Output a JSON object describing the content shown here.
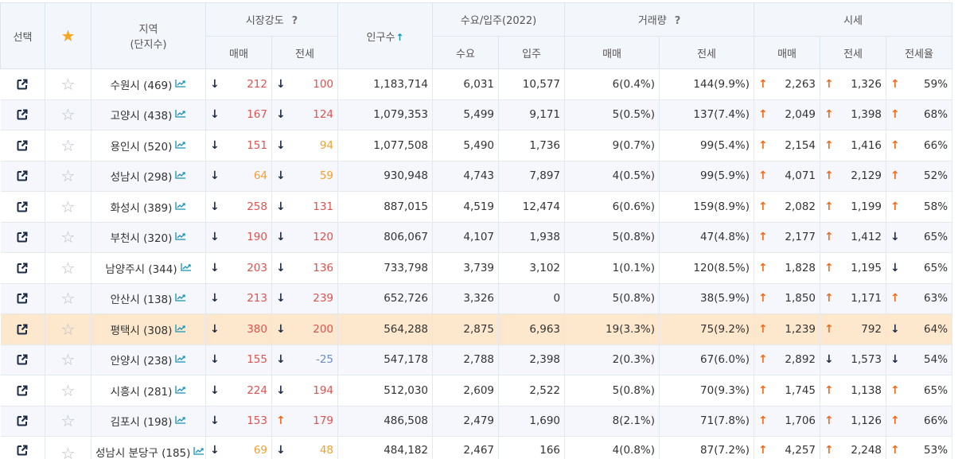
{
  "header": {
    "select": "선택",
    "region_line1": "지역",
    "region_line2": "(단지수)",
    "market_strength": "시장강도",
    "population": "인구수",
    "demand_supply": "수요/입주(2022)",
    "volume": "거래량",
    "price": "시세",
    "qmark": "?",
    "sort_arrow": "↑",
    "sub": {
      "ms_sale": "매매",
      "ms_jeonse": "전세",
      "demand": "수요",
      "supply": "입주",
      "vol_sale": "매매",
      "vol_jeonse": "전세",
      "price_sale": "매매",
      "price_jeonse": "전세",
      "price_ratio": "전세율"
    }
  },
  "rows": [
    {
      "region": "수원시 (469)",
      "ms_sale": {
        "arrow": "↓",
        "value": "212",
        "color": "red"
      },
      "ms_jeonse": {
        "arrow": "↓",
        "value": "100",
        "color": "red"
      },
      "population": "1,183,714",
      "demand": "6,031",
      "supply": "10,577",
      "vol_sale": "6(0.4%)",
      "vol_jeonse": "144(9.9%)",
      "price_sale": {
        "arrow": "↑",
        "value": "2,263"
      },
      "price_jeonse": {
        "arrow": "↑",
        "value": "1,326"
      },
      "ratio": {
        "arrow": "↑",
        "value": "59%"
      }
    },
    {
      "region": "고양시 (438)",
      "ms_sale": {
        "arrow": "↓",
        "value": "167",
        "color": "red"
      },
      "ms_jeonse": {
        "arrow": "↓",
        "value": "124",
        "color": "red"
      },
      "population": "1,079,353",
      "demand": "5,499",
      "supply": "9,171",
      "vol_sale": "5(0.5%)",
      "vol_jeonse": "137(7.4%)",
      "price_sale": {
        "arrow": "↑",
        "value": "2,049"
      },
      "price_jeonse": {
        "arrow": "↑",
        "value": "1,398"
      },
      "ratio": {
        "arrow": "↑",
        "value": "68%"
      }
    },
    {
      "region": "용인시 (520)",
      "ms_sale": {
        "arrow": "↓",
        "value": "151",
        "color": "red"
      },
      "ms_jeonse": {
        "arrow": "↓",
        "value": "94",
        "color": "org"
      },
      "population": "1,077,508",
      "demand": "5,490",
      "supply": "1,736",
      "vol_sale": "9(0.7%)",
      "vol_jeonse": "99(5.4%)",
      "price_sale": {
        "arrow": "↑",
        "value": "2,154"
      },
      "price_jeonse": {
        "arrow": "↑",
        "value": "1,416"
      },
      "ratio": {
        "arrow": "↑",
        "value": "66%"
      }
    },
    {
      "region": "성남시 (298)",
      "ms_sale": {
        "arrow": "↓",
        "value": "64",
        "color": "org"
      },
      "ms_jeonse": {
        "arrow": "↓",
        "value": "59",
        "color": "org"
      },
      "population": "930,948",
      "demand": "4,743",
      "supply": "7,897",
      "vol_sale": "4(0.5%)",
      "vol_jeonse": "99(5.9%)",
      "price_sale": {
        "arrow": "↑",
        "value": "4,071"
      },
      "price_jeonse": {
        "arrow": "↑",
        "value": "2,129"
      },
      "ratio": {
        "arrow": "↑",
        "value": "52%"
      }
    },
    {
      "region": "화성시 (389)",
      "ms_sale": {
        "arrow": "↓",
        "value": "258",
        "color": "red"
      },
      "ms_jeonse": {
        "arrow": "↓",
        "value": "131",
        "color": "red"
      },
      "population": "887,015",
      "demand": "4,519",
      "supply": "12,474",
      "vol_sale": "6(0.6%)",
      "vol_jeonse": "159(8.9%)",
      "price_sale": {
        "arrow": "↑",
        "value": "2,082"
      },
      "price_jeonse": {
        "arrow": "↑",
        "value": "1,199"
      },
      "ratio": {
        "arrow": "↑",
        "value": "58%"
      }
    },
    {
      "region": "부천시 (320)",
      "ms_sale": {
        "arrow": "↓",
        "value": "190",
        "color": "red"
      },
      "ms_jeonse": {
        "arrow": "↓",
        "value": "120",
        "color": "red"
      },
      "population": "806,067",
      "demand": "4,107",
      "supply": "1,938",
      "vol_sale": "5(0.8%)",
      "vol_jeonse": "47(4.8%)",
      "price_sale": {
        "arrow": "↑",
        "value": "2,177"
      },
      "price_jeonse": {
        "arrow": "↑",
        "value": "1,412"
      },
      "ratio": {
        "arrow": "↓",
        "value": "65%"
      }
    },
    {
      "region": "남양주시 (344)",
      "ms_sale": {
        "arrow": "↓",
        "value": "203",
        "color": "red"
      },
      "ms_jeonse": {
        "arrow": "↓",
        "value": "136",
        "color": "red"
      },
      "population": "733,798",
      "demand": "3,739",
      "supply": "3,102",
      "vol_sale": "1(0.1%)",
      "vol_jeonse": "120(8.5%)",
      "price_sale": {
        "arrow": "↑",
        "value": "1,828"
      },
      "price_jeonse": {
        "arrow": "↑",
        "value": "1,195"
      },
      "ratio": {
        "arrow": "↓",
        "value": "65%"
      }
    },
    {
      "region": "안산시 (138)",
      "ms_sale": {
        "arrow": "↓",
        "value": "213",
        "color": "red"
      },
      "ms_jeonse": {
        "arrow": "↓",
        "value": "239",
        "color": "red"
      },
      "population": "652,726",
      "demand": "3,326",
      "supply": "0",
      "vol_sale": "5(0.8%)",
      "vol_jeonse": "38(5.9%)",
      "price_sale": {
        "arrow": "↑",
        "value": "1,850"
      },
      "price_jeonse": {
        "arrow": "↑",
        "value": "1,171"
      },
      "ratio": {
        "arrow": "↑",
        "value": "63%"
      }
    },
    {
      "region": "평택시 (308)",
      "highlight": true,
      "ms_sale": {
        "arrow": "↓",
        "value": "380",
        "color": "red"
      },
      "ms_jeonse": {
        "arrow": "↓",
        "value": "200",
        "color": "red"
      },
      "population": "564,288",
      "demand": "2,875",
      "supply": "6,963",
      "vol_sale": "19(3.3%)",
      "vol_jeonse": "75(9.2%)",
      "price_sale": {
        "arrow": "↑",
        "value": "1,239"
      },
      "price_jeonse": {
        "arrow": "↑",
        "value": "792"
      },
      "ratio": {
        "arrow": "↓",
        "value": "64%"
      }
    },
    {
      "region": "안양시 (238)",
      "ms_sale": {
        "arrow": "↓",
        "value": "155",
        "color": "red"
      },
      "ms_jeonse": {
        "arrow": "↓",
        "value": "-25",
        "color": "blu"
      },
      "population": "547,178",
      "demand": "2,788",
      "supply": "2,398",
      "vol_sale": "2(0.3%)",
      "vol_jeonse": "67(6.0%)",
      "price_sale": {
        "arrow": "↑",
        "value": "2,892"
      },
      "price_jeonse": {
        "arrow": "↓",
        "value": "1,573"
      },
      "ratio": {
        "arrow": "↓",
        "value": "54%"
      }
    },
    {
      "region": "시흥시 (281)",
      "ms_sale": {
        "arrow": "↓",
        "value": "224",
        "color": "red"
      },
      "ms_jeonse": {
        "arrow": "↓",
        "value": "194",
        "color": "red"
      },
      "population": "512,030",
      "demand": "2,609",
      "supply": "2,522",
      "vol_sale": "5(0.8%)",
      "vol_jeonse": "70(9.3%)",
      "price_sale": {
        "arrow": "↑",
        "value": "1,745"
      },
      "price_jeonse": {
        "arrow": "↑",
        "value": "1,138"
      },
      "ratio": {
        "arrow": "↑",
        "value": "65%"
      }
    },
    {
      "region": "김포시 (198)",
      "ms_sale": {
        "arrow": "↓",
        "value": "153",
        "color": "red"
      },
      "ms_jeonse": {
        "arrow": "↑",
        "value": "179",
        "color": "red"
      },
      "population": "486,508",
      "demand": "2,479",
      "supply": "1,690",
      "vol_sale": "8(2.1%)",
      "vol_jeonse": "71(7.8%)",
      "price_sale": {
        "arrow": "↑",
        "value": "1,706"
      },
      "price_jeonse": {
        "arrow": "↑",
        "value": "1,126"
      },
      "ratio": {
        "arrow": "↑",
        "value": "66%"
      }
    },
    {
      "region": "성남시 분당구 (185)",
      "cut": true,
      "ms_sale": {
        "arrow": "↓",
        "value": "69",
        "color": "org"
      },
      "ms_jeonse": {
        "arrow": "↓",
        "value": "48",
        "color": "org"
      },
      "population": "484,182",
      "demand": "2,467",
      "supply": "166",
      "vol_sale": "4(0.8%)",
      "vol_jeonse": "87(7.2%)",
      "price_sale": {
        "arrow": "↑",
        "value": "4,257"
      },
      "price_jeonse": {
        "arrow": "↑",
        "value": "2,248"
      },
      "ratio": {
        "arrow": "↑",
        "value": "53%"
      }
    }
  ],
  "icons": {
    "external_link": "external-link-icon",
    "star_empty": "star-outline-icon",
    "star_filled": "star-filled-icon",
    "trend": "trend-chart-icon",
    "star_glyph": "☆",
    "star_head_glyph": "★"
  },
  "colors": {
    "header_bg": "#f3f6fb",
    "highlight_row": "#fde8cd",
    "up_arrow": "#f26b1d",
    "down_arrow": "#1e2d45",
    "red_value": "#e0524e",
    "orange_value": "#f0a030",
    "blue_value": "#6d8dc0",
    "star_head": "#f5a623",
    "trend_icon": "#1592b8"
  }
}
